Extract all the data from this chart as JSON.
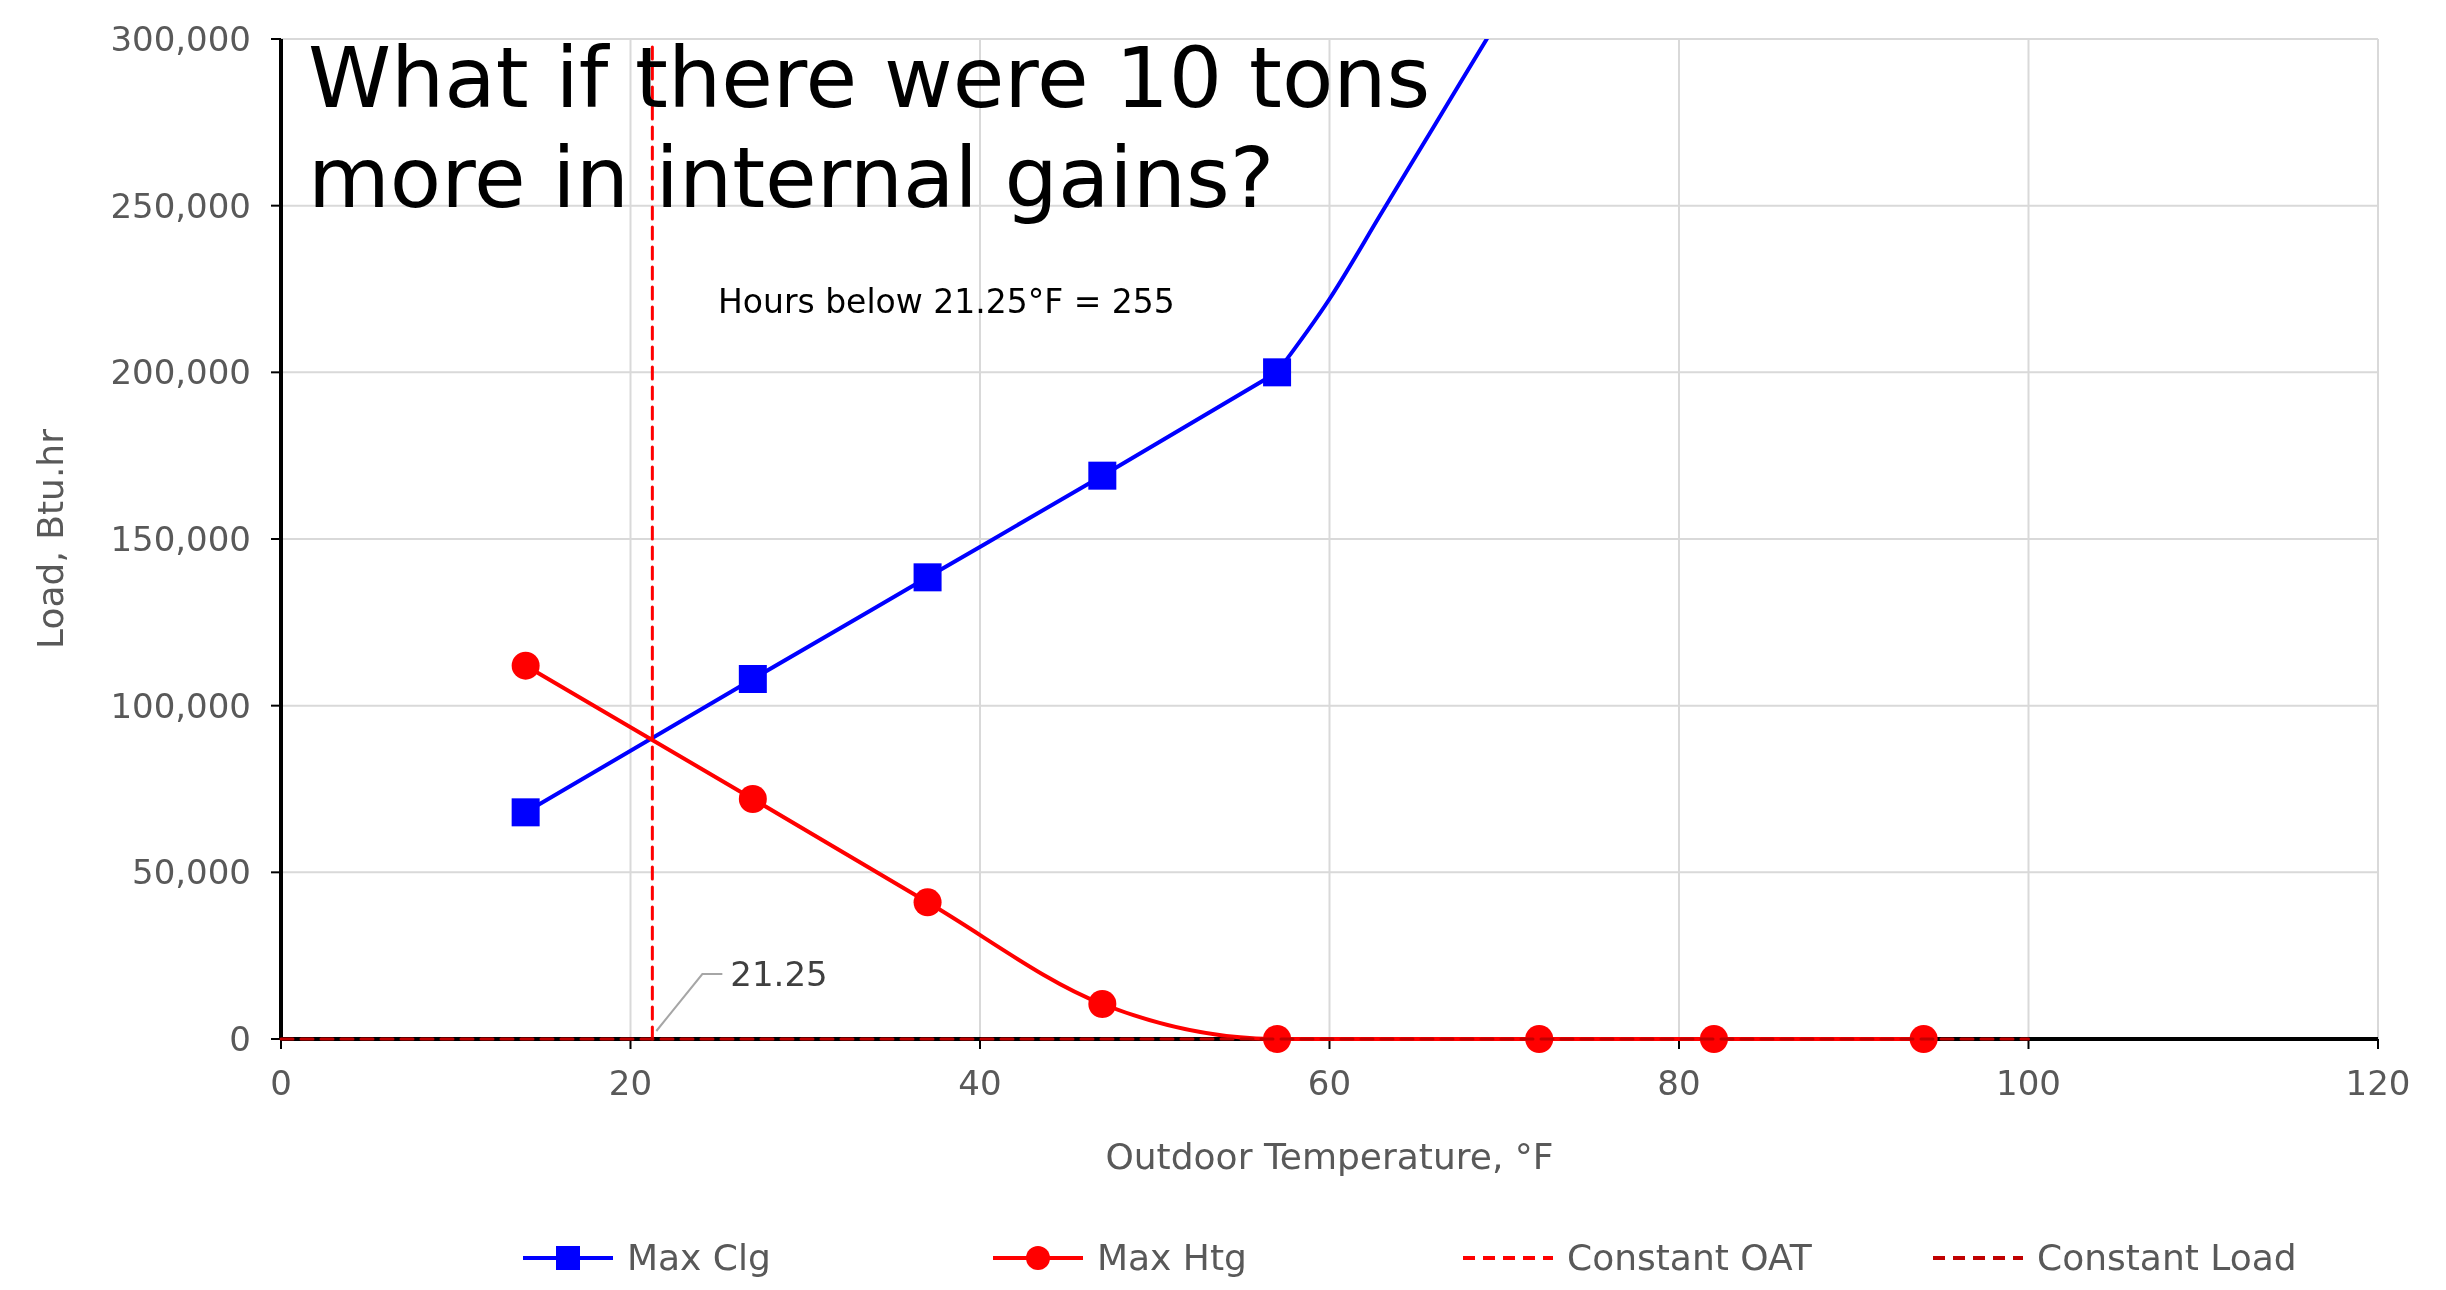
{
  "chart_data": {
    "type": "line",
    "xlabel": "Outdoor Temperature,  °F",
    "ylabel": "Load, Btu.hr",
    "xlim": [
      0,
      120
    ],
    "xticks": [
      0,
      20,
      40,
      60,
      80,
      100,
      120
    ],
    "ylim": [
      0,
      300000
    ],
    "yticks": [
      {
        "value": 0,
        "label": "0"
      },
      {
        "value": 50000,
        "label": "50,000"
      },
      {
        "value": 100000,
        "label": "100,000"
      },
      {
        "value": 150000,
        "label": "150,000"
      },
      {
        "value": 200000,
        "label": "200,000"
      },
      {
        "value": 250000,
        "label": "250,000"
      },
      {
        "value": 300000,
        "label": "300,000"
      }
    ],
    "grid": true,
    "legend": "bottom",
    "series": [
      {
        "name": "Max Clg",
        "color": "#0000ff",
        "marker": "square",
        "line_style": "solid",
        "x": [
          14,
          27,
          37,
          47,
          57
        ],
        "values": [
          68000,
          108000,
          138500,
          169000,
          200000
        ]
      },
      {
        "color": "#0000ff",
        "marker": "none",
        "line_style": "solid",
        "x": [
          57,
          60,
          63,
          66,
          69
        ],
        "values": [
          200000,
          222000,
          248000,
          274000,
          300000
        ]
      },
      {
        "name": "Max Htg",
        "color": "#ff0000",
        "marker": "circle",
        "line_style": "solid",
        "x": [
          14,
          27,
          37,
          47,
          57,
          72,
          82,
          94
        ],
        "values": [
          112000,
          72000,
          41000,
          10500,
          0,
          0,
          0,
          0
        ]
      },
      {
        "name": "Constant OAT",
        "color": "#ff0000",
        "marker": "none",
        "line_style": "dashed",
        "x": [
          21.25,
          21.25
        ],
        "values": [
          0,
          300000
        ]
      },
      {
        "name": "Constant Load",
        "color": "#c00000",
        "marker": "none",
        "line_style": "dashed",
        "x": [
          0,
          100
        ],
        "values": [
          0,
          0
        ]
      }
    ],
    "annotations": [
      "What if there were 10 tons more in  internal gains?",
      "Hours below 21.25°F = 255",
      {
        "text": "21.25",
        "x": 21.25,
        "y": 0
      }
    ]
  }
}
